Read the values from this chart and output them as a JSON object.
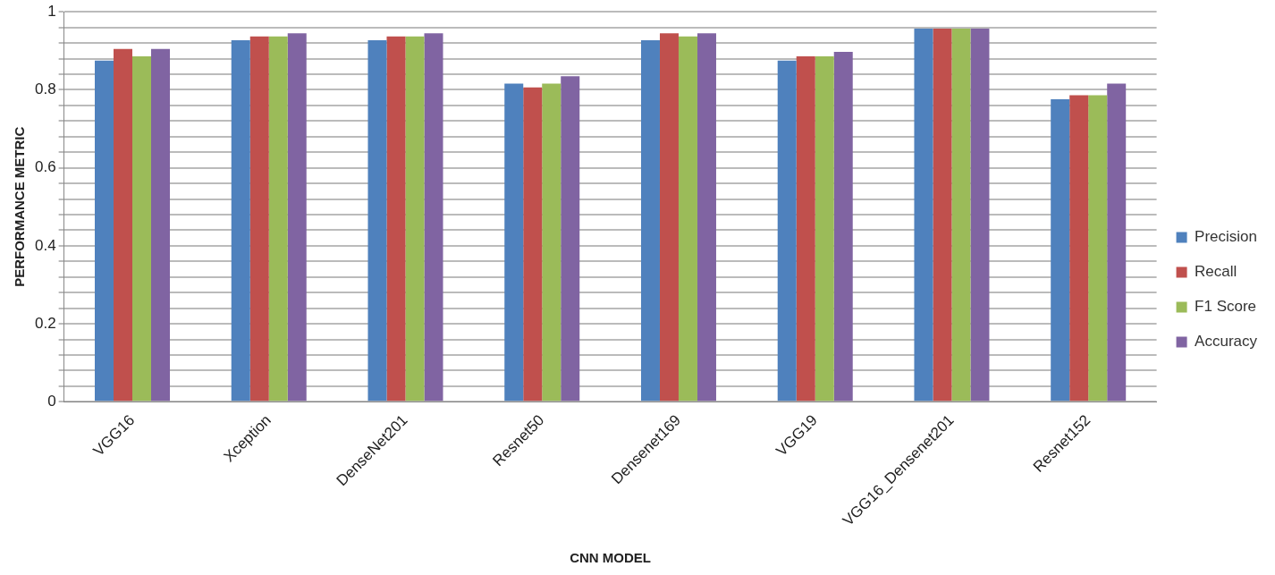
{
  "chart_data": {
    "type": "bar",
    "xlabel": "CNN MODEL",
    "ylabel": "PERFORMANCE METRIC",
    "categories": [
      "VGG16",
      "Xception",
      "DenseNet201",
      "Resnet50",
      "Densenet169",
      "VGG19",
      "VGG16_Densenet201",
      "Resnet152"
    ],
    "series": [
      {
        "name": "Precision",
        "color": "#4f81bd",
        "values": [
          0.875,
          0.927,
          0.927,
          0.816,
          0.927,
          0.875,
          0.957,
          0.776
        ]
      },
      {
        "name": "Recall",
        "color": "#c0504d",
        "values": [
          0.905,
          0.937,
          0.937,
          0.806,
          0.945,
          0.886,
          0.957,
          0.786
        ]
      },
      {
        "name": "F1 Score",
        "color": "#9bbb59",
        "values": [
          0.886,
          0.937,
          0.937,
          0.816,
          0.937,
          0.886,
          0.957,
          0.786
        ]
      },
      {
        "name": "Accuracy",
        "color": "#8064a2",
        "values": [
          0.905,
          0.945,
          0.945,
          0.835,
          0.945,
          0.897,
          0.957,
          0.816
        ]
      }
    ],
    "ylim": [
      0,
      1
    ],
    "yticks": [
      0,
      {
        "value": 0.04,
        "label": null
      },
      {
        "value": 0.08,
        "label": null
      },
      {
        "value": 0.12,
        "label": null
      },
      {
        "value": 0.16,
        "label": null
      },
      0.2,
      {
        "value": 0.24,
        "label": null
      },
      {
        "value": 0.28,
        "label": null
      },
      {
        "value": 0.32,
        "label": null
      },
      {
        "value": 0.36,
        "label": null
      },
      0.4,
      {
        "value": 0.44,
        "label": null
      },
      {
        "value": 0.48,
        "label": null
      },
      {
        "value": 0.52,
        "label": null
      },
      {
        "value": 0.56,
        "label": null
      },
      0.6,
      {
        "value": 0.64,
        "label": null
      },
      {
        "value": 0.68,
        "label": null
      },
      {
        "value": 0.72,
        "label": null
      },
      {
        "value": 0.76,
        "label": null
      },
      0.8,
      {
        "value": 0.84,
        "label": null
      },
      {
        "value": 0.88,
        "label": null
      },
      {
        "value": 0.92,
        "label": null
      },
      {
        "value": 0.96,
        "label": null
      },
      1
    ],
    "grid": "y",
    "legend": "right"
  }
}
